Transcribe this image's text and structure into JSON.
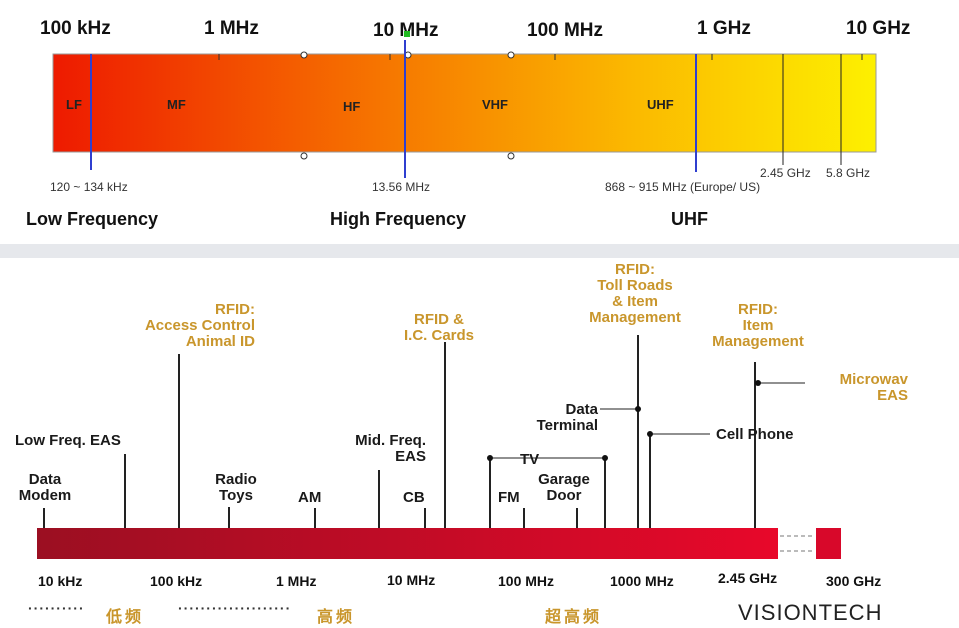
{
  "top": {
    "scale": [
      "100 kHz",
      "1 MHz",
      "10 MHz",
      "100 MHz",
      "1 GHz",
      "10 GHz"
    ],
    "bands": [
      "LF",
      "MF",
      "HF",
      "VHF",
      "UHF"
    ],
    "markers": {
      "lf": "120 ~ 134 kHz",
      "hf": "13.56 MHz",
      "uhf": "868 ~ 915 MHz (Europe/ US)",
      "ghz245": "2.45 GHz",
      "ghz58": "5.8 GHz"
    },
    "ranges": {
      "low": "Low Frequency",
      "high": "High Frequency",
      "uhf": "UHF"
    }
  },
  "bottom": {
    "apps": {
      "data_modem": "Data\nModem",
      "low_freq_eas": "Low Freq. EAS",
      "radio_toys": "Radio\nToys",
      "am": "AM",
      "mid_freq_eas": "Mid. Freq.\nEAS",
      "cb": "CB",
      "fm": "FM",
      "tv": "TV",
      "garage_door": "Garage\nDoor",
      "data_terminal": "Data\nTerminal",
      "cell_phone": "Cell Phone"
    },
    "rfid": {
      "access_control": "RFID:\nAccess Control\nAnimal ID",
      "ic_cards": "RFID &\nI.C. Cards",
      "toll_roads": "RFID:\nToll Roads\n& Item\nManagement",
      "item_management": "RFID:\nItem\nManagement",
      "microwave": "Microwav\nEAS"
    },
    "freqs": [
      "10 kHz",
      "100 kHz",
      "1 MHz",
      "10 MHz",
      "100 MHz",
      "1000 MHz",
      "2.45 GHz",
      "300 GHz"
    ],
    "cn": {
      "dots1": "··········",
      "low": "低频",
      "dots2": "····················",
      "high": "高频",
      "ultra": "超高频"
    },
    "brand": "VISIONTECH"
  },
  "colors": {
    "top_gradient": [
      "#ee1a00",
      "#f56a00",
      "#fbb800",
      "#fdf000"
    ],
    "bottom_bar": [
      "#9b0f22",
      "#e8082a"
    ],
    "rfid_text": "#c9962c",
    "marker_line": "#2f3fd0"
  }
}
